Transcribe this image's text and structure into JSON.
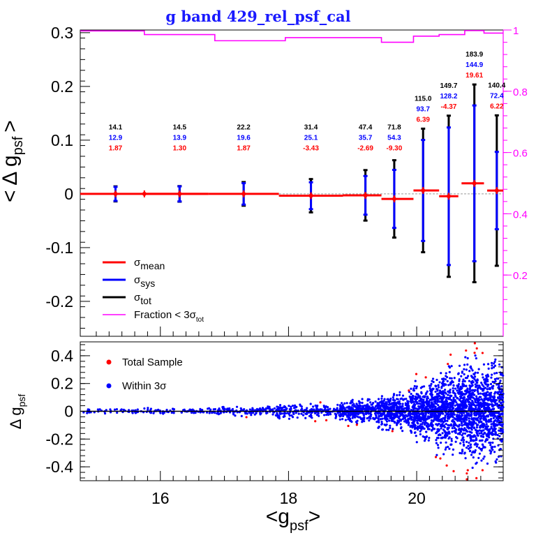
{
  "title": "g band 429_rel_psf_cal",
  "colors": {
    "mean": "#ff0000",
    "sys": "#0000ff",
    "tot": "#000000",
    "fraction": "#ff00ff",
    "title": "#1a1aff"
  },
  "chart_data": [
    {
      "type": "scatter",
      "panel": "top",
      "ylabel": "< Δ g",
      "ylabel_sub": "psf",
      "ylabel_end": ">",
      "xlim": [
        14.75,
        21.35
      ],
      "ylim": [
        -0.265,
        0.305
      ],
      "yticks": [
        -0.2,
        -0.1,
        0,
        0.1,
        0.2,
        0.3
      ],
      "ytick_labels": [
        "-0.2",
        "-0.1",
        "0",
        "0.1",
        "0.2",
        "0.3"
      ],
      "right_axis": {
        "ylim": [
          0,
          1.0
        ],
        "ticks": [
          0.2,
          0.4,
          0.6,
          0.8,
          1
        ],
        "tick_labels": [
          "0.2",
          "0.4",
          "0.6",
          "0.8",
          "1"
        ]
      },
      "bins": [
        {
          "x": 15.3,
          "xlo": 14.75,
          "xhi": 15.75,
          "mean": 0.0,
          "sys": 0.013,
          "tot": 0.014,
          "label_tot": "14.1",
          "label_sys": "12.9",
          "label_mean": "1.87"
        },
        {
          "x": 15.75,
          "xlo": 15.75,
          "xhi": 16.75,
          "mean": 0.0,
          "sys": 0.0,
          "tot": 0.0
        },
        {
          "x": 16.3,
          "xlo": 15.75,
          "xhi": 16.75,
          "mean": 0.0,
          "sys": 0.014,
          "tot": 0.0145,
          "label_tot": "14.5",
          "label_sys": "13.9",
          "label_mean": "1.30"
        },
        {
          "x": 17.3,
          "xlo": 16.75,
          "xhi": 17.85,
          "mean": 0.0,
          "sys": 0.02,
          "tot": 0.022,
          "label_tot": "22.2",
          "label_sys": "19.6",
          "label_mean": "1.87"
        },
        {
          "x": 18.35,
          "xlo": 17.85,
          "xhi": 18.85,
          "mean": -0.0034,
          "sys": 0.025,
          "tot": 0.031,
          "label_tot": "31.4",
          "label_sys": "25.1",
          "label_mean": "-3.43"
        },
        {
          "x": 19.2,
          "xlo": 18.85,
          "xhi": 19.45,
          "mean": -0.0027,
          "sys": 0.036,
          "tot": 0.047,
          "label_tot": "47.4",
          "label_sys": "35.7",
          "label_mean": "-2.69"
        },
        {
          "x": 19.65,
          "xlo": 19.45,
          "xhi": 19.95,
          "mean": -0.0093,
          "sys": 0.054,
          "tot": 0.072,
          "label_tot": "71.8",
          "label_sys": "54.3",
          "label_mean": "-9.30"
        },
        {
          "x": 20.1,
          "xlo": 19.95,
          "xhi": 20.35,
          "mean": 0.0064,
          "sys": 0.094,
          "tot": 0.115,
          "label_tot": "115.0",
          "label_sys": "93.7",
          "label_mean": "6.39"
        },
        {
          "x": 20.5,
          "xlo": 20.35,
          "xhi": 20.65,
          "mean": -0.0044,
          "sys": 0.128,
          "tot": 0.15,
          "label_tot": "149.7",
          "label_sys": "128.2",
          "label_mean": "-4.37"
        },
        {
          "x": 20.9,
          "xlo": 20.7,
          "xhi": 21.05,
          "mean": 0.0196,
          "sys": 0.145,
          "tot": 0.184,
          "label_tot": "183.9",
          "label_sys": "144.9",
          "label_mean": "19.61"
        },
        {
          "x": 21.25,
          "xlo": 21.1,
          "xhi": 21.35,
          "mean": 0.0062,
          "sys": 0.072,
          "tot": 0.14,
          "label_tot": "140.4",
          "label_sys": "72.4",
          "label_mean": "6.22"
        }
      ],
      "fraction_steps": [
        {
          "xlo": 14.75,
          "xhi": 15.75,
          "y": 0.997
        },
        {
          "xlo": 15.75,
          "xhi": 16.85,
          "y": 0.985
        },
        {
          "xlo": 16.85,
          "xhi": 17.95,
          "y": 0.965
        },
        {
          "xlo": 17.95,
          "xhi": 18.85,
          "y": 0.975
        },
        {
          "xlo": 18.85,
          "xhi": 19.45,
          "y": 0.975
        },
        {
          "xlo": 19.45,
          "xhi": 19.95,
          "y": 0.96
        },
        {
          "xlo": 19.95,
          "xhi": 20.35,
          "y": 0.98
        },
        {
          "xlo": 20.35,
          "xhi": 20.75,
          "y": 0.985
        },
        {
          "xlo": 20.75,
          "xhi": 21.05,
          "y": 0.998
        },
        {
          "xlo": 21.05,
          "xhi": 21.35,
          "y": 0.99
        }
      ],
      "legend": [
        {
          "symbol": "σ",
          "sub": "mean",
          "color": "#ff0000"
        },
        {
          "symbol": "σ",
          "sub": "sys",
          "color": "#0000ff"
        },
        {
          "symbol": "σ",
          "sub": "tot",
          "color": "#000000"
        },
        {
          "symbol": "Fraction < 3σ",
          "sub": "tot",
          "color": "#ff00ff"
        }
      ],
      "legend_position": "bottom-left"
    },
    {
      "type": "scatter",
      "panel": "bottom",
      "xlabel": "<g",
      "xlabel_sub": "psf",
      "xlabel_end": ">",
      "ylabel": "Δ g",
      "ylabel_sub": "psf",
      "xlim": [
        14.75,
        21.35
      ],
      "ylim": [
        -0.5,
        0.5
      ],
      "xticks": [
        16,
        18,
        20
      ],
      "xtick_labels": [
        "16",
        "18",
        "20"
      ],
      "yticks": [
        -0.4,
        -0.2,
        0,
        0.2,
        0.4
      ],
      "ytick_labels": [
        "-0.4",
        "-0.2",
        "0",
        "0.2",
        "0.4"
      ],
      "legend": [
        {
          "label": "Total Sample",
          "color": "#ff0000"
        },
        {
          "label": "Within 3σ",
          "color": "#0000ff"
        }
      ],
      "scatter_model": {
        "description_note": "",
        "bins": [
          {
            "xlo": 14.8,
            "xhi": 15.8,
            "sigma": 0.008,
            "n": 50
          },
          {
            "xlo": 15.8,
            "xhi": 16.8,
            "sigma": 0.01,
            "n": 70
          },
          {
            "xlo": 16.8,
            "xhi": 17.8,
            "sigma": 0.016,
            "n": 120
          },
          {
            "xlo": 17.8,
            "xhi": 18.8,
            "sigma": 0.024,
            "n": 200
          },
          {
            "xlo": 18.8,
            "xhi": 19.4,
            "sigma": 0.036,
            "n": 300
          },
          {
            "xlo": 19.4,
            "xhi": 19.9,
            "sigma": 0.055,
            "n": 380
          },
          {
            "xlo": 19.9,
            "xhi": 20.3,
            "sigma": 0.09,
            "n": 450
          },
          {
            "xlo": 20.3,
            "xhi": 20.7,
            "sigma": 0.13,
            "n": 520
          },
          {
            "xlo": 20.7,
            "xhi": 21.05,
            "sigma": 0.16,
            "n": 560
          },
          {
            "xlo": 21.05,
            "xhi": 21.35,
            "sigma": 0.15,
            "n": 420
          }
        ]
      }
    }
  ]
}
